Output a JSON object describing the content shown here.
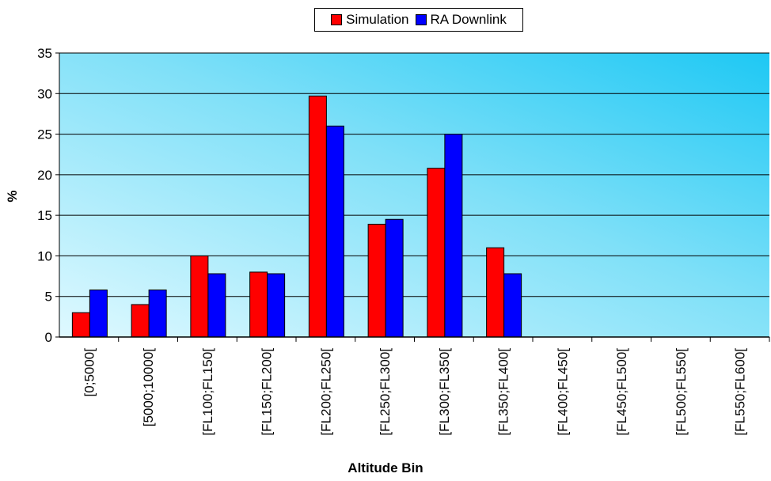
{
  "chart_data": {
    "type": "bar",
    "title": "",
    "xlabel": "Altitude Bin",
    "ylabel": "%",
    "ylim": [
      0,
      35
    ],
    "yticks": [
      0,
      5,
      10,
      15,
      20,
      25,
      30,
      35
    ],
    "grid": true,
    "legend_position": "top-center",
    "categories": [
      "[0;5000[",
      "[5000;10000[",
      "[FL100;FL150[",
      "[FL150;FL200[",
      "[FL200;FL250[",
      "[FL250;FL300[",
      "[FL300;FL350[",
      "[FL350;FL400[",
      "[FL400;FL450[",
      "[FL450;FL500[",
      "[FL500;FL550[",
      "[FL550;FL600["
    ],
    "series": [
      {
        "name": "Simulation",
        "color": "#ff0000",
        "values": [
          3,
          4,
          10,
          8,
          29.7,
          13.9,
          20.8,
          11,
          0,
          0,
          0,
          0
        ]
      },
      {
        "name": "RA Downlink",
        "color": "#0000ff",
        "values": [
          5.8,
          5.8,
          7.8,
          7.8,
          26,
          14.5,
          25,
          7.8,
          0,
          0,
          0,
          0
        ]
      }
    ]
  }
}
